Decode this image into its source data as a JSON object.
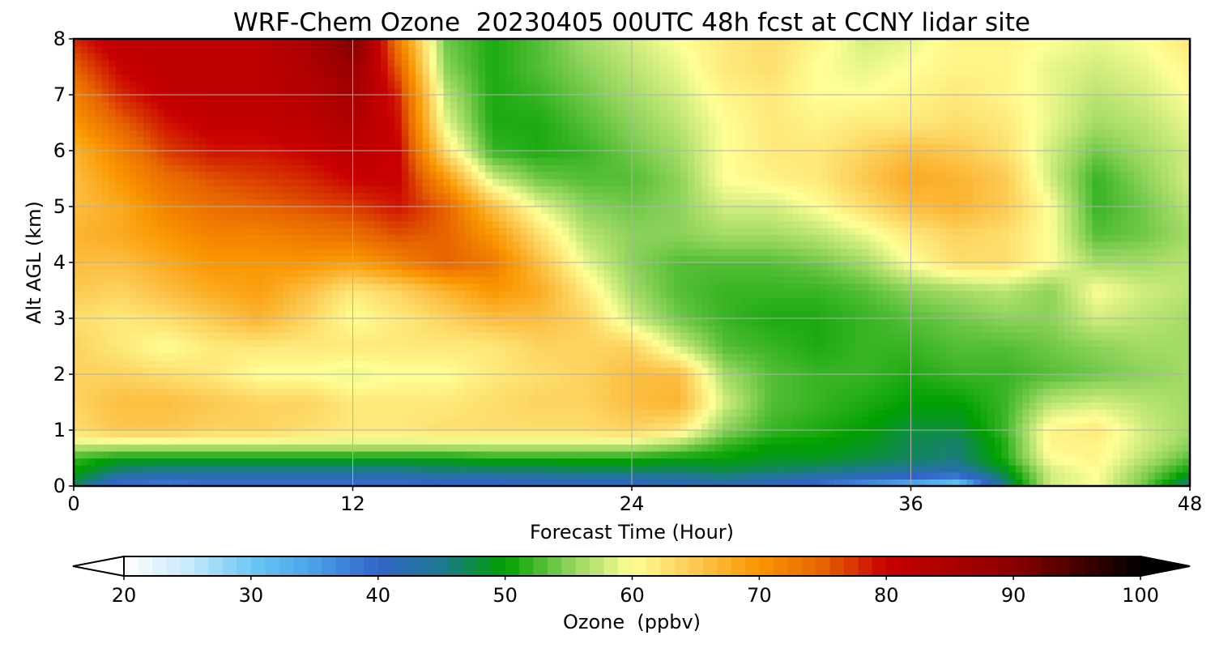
{
  "chart_data": {
    "type": "heatmap",
    "title": "WRF-Chem Ozone  20230405 00UTC 48h fcst at CCNY lidar site",
    "xlabel": "Forecast Time (Hour)",
    "ylabel": "Alt AGL (km)",
    "xlim": [
      0,
      48
    ],
    "ylim": [
      0,
      8
    ],
    "x_ticks": [
      "0",
      "12",
      "24",
      "36",
      "48"
    ],
    "y_ticks": [
      "0",
      "1",
      "2",
      "3",
      "4",
      "5",
      "6",
      "7",
      "8"
    ],
    "grid": true,
    "x": [
      0,
      2,
      4,
      6,
      8,
      10,
      12,
      14,
      16,
      18,
      20,
      22,
      24,
      26,
      28,
      30,
      32,
      34,
      36,
      38,
      40,
      42,
      44,
      46,
      48
    ],
    "y": [
      0,
      0.25,
      0.5,
      0.75,
      1,
      1.5,
      2,
      2.5,
      3,
      3.5,
      4,
      4.5,
      5,
      5.5,
      6,
      6.5,
      7,
      7.5,
      8
    ],
    "z_units": "ppbv",
    "z": [
      [
        47,
        38,
        37,
        38,
        38,
        38,
        38,
        38,
        39,
        39,
        40,
        40,
        40,
        41,
        42,
        40,
        38,
        35,
        32,
        28,
        45,
        58,
        60,
        54,
        45
      ],
      [
        50,
        45,
        44,
        44,
        44,
        44,
        44,
        44,
        45,
        45,
        45,
        46,
        46,
        46,
        47,
        46,
        45,
        44,
        43,
        42,
        48,
        58,
        60,
        55,
        50
      ],
      [
        52,
        50,
        50,
        50,
        50,
        50,
        50,
        50,
        50,
        51,
        51,
        51,
        51,
        50,
        50,
        49,
        49,
        48,
        47,
        46,
        51,
        60,
        61,
        57,
        53
      ],
      [
        58,
        58,
        58,
        58,
        58,
        58,
        58,
        58,
        58,
        58,
        58,
        58,
        58,
        56,
        52,
        50,
        50,
        49,
        47,
        46,
        51,
        61,
        61,
        58,
        55
      ],
      [
        63,
        65,
        65,
        64,
        64,
        63,
        62,
        62,
        63,
        63,
        63,
        63,
        64,
        62,
        55,
        52,
        51,
        50,
        48,
        48,
        52,
        61,
        62,
        58,
        56
      ],
      [
        64,
        66,
        66,
        65,
        64,
        64,
        62,
        62,
        62,
        63,
        64,
        64,
        66,
        67,
        58,
        53,
        52,
        51,
        50,
        50,
        52,
        57,
        58,
        57,
        56
      ],
      [
        64,
        64,
        63,
        62,
        60,
        60,
        59,
        60,
        60,
        62,
        63,
        64,
        66,
        66,
        56,
        53,
        52,
        52,
        51,
        52,
        52,
        53,
        54,
        55,
        56
      ],
      [
        64,
        62,
        60,
        62,
        62,
        62,
        62,
        62,
        62,
        62,
        64,
        64,
        64,
        58,
        53,
        52,
        51,
        52,
        52,
        53,
        53,
        54,
        55,
        56,
        56
      ],
      [
        63,
        62,
        63,
        65,
        67,
        64,
        60,
        62,
        64,
        66,
        66,
        64,
        58,
        54,
        52,
        51,
        51,
        52,
        53,
        54,
        55,
        55,
        58,
        57,
        56
      ],
      [
        65,
        64,
        66,
        68,
        69,
        66,
        62,
        64,
        67,
        70,
        68,
        62,
        56,
        53,
        52,
        52,
        52,
        53,
        55,
        56,
        57,
        55,
        60,
        58,
        57
      ],
      [
        66,
        66,
        68,
        70,
        70,
        70,
        69,
        72,
        75,
        73,
        66,
        59,
        55,
        53,
        53,
        53,
        54,
        56,
        60,
        63,
        63,
        60,
        56,
        56,
        57
      ],
      [
        67,
        68,
        70,
        72,
        72,
        73,
        74,
        76,
        75,
        70,
        63,
        57,
        55,
        55,
        56,
        56,
        57,
        59,
        62,
        64,
        63,
        60,
        53,
        54,
        56
      ],
      [
        66,
        68,
        72,
        74,
        75,
        76,
        77,
        79,
        75,
        66,
        59,
        55,
        54,
        55,
        58,
        58,
        60,
        63,
        66,
        67,
        65,
        60,
        52,
        54,
        57
      ],
      [
        66,
        70,
        74,
        76,
        77,
        78,
        80,
        80,
        70,
        58,
        54,
        53,
        53,
        55,
        60,
        61,
        62,
        65,
        68,
        67,
        65,
        58,
        52,
        55,
        58
      ],
      [
        67,
        72,
        77,
        79,
        79,
        80,
        82,
        80,
        63,
        52,
        51,
        52,
        54,
        56,
        60,
        62,
        62,
        64,
        66,
        65,
        63,
        58,
        54,
        56,
        58
      ],
      [
        70,
        75,
        79,
        81,
        81,
        82,
        84,
        79,
        59,
        51,
        51,
        53,
        55,
        57,
        60,
        62,
        61,
        62,
        62,
        63,
        62,
        59,
        56,
        57,
        59
      ],
      [
        72,
        78,
        81,
        82,
        82,
        83,
        86,
        78,
        57,
        51,
        52,
        54,
        56,
        58,
        61,
        62,
        60,
        60,
        61,
        62,
        61,
        59,
        57,
        58,
        60
      ],
      [
        75,
        80,
        82,
        82,
        82,
        84,
        88,
        75,
        55,
        51,
        53,
        55,
        57,
        59,
        62,
        63,
        60,
        59,
        60,
        61,
        61,
        59,
        58,
        59,
        61
      ],
      [
        78,
        82,
        82,
        82,
        82,
        85,
        92,
        72,
        54,
        51,
        53,
        56,
        58,
        60,
        62,
        63,
        61,
        58,
        59,
        61,
        61,
        60,
        59,
        60,
        62
      ]
    ],
    "colorbar": {
      "label": "Ozone  (ppbv)",
      "min": 20,
      "max": 100,
      "extend": "both",
      "ticks": [
        "20",
        "30",
        "40",
        "50",
        "60",
        "70",
        "80",
        "90",
        "100"
      ],
      "colors": [
        {
          "v": 20,
          "c": "#ffffff"
        },
        {
          "v": 25,
          "c": "#c8eafa"
        },
        {
          "v": 30,
          "c": "#6ec8f5"
        },
        {
          "v": 35,
          "c": "#4aa0e6"
        },
        {
          "v": 40,
          "c": "#3264c8"
        },
        {
          "v": 45,
          "c": "#1e7890"
        },
        {
          "v": 50,
          "c": "#00a000"
        },
        {
          "v": 55,
          "c": "#8cd25a"
        },
        {
          "v": 60,
          "c": "#ffff96"
        },
        {
          "v": 65,
          "c": "#fcc850"
        },
        {
          "v": 70,
          "c": "#fa9600"
        },
        {
          "v": 75,
          "c": "#e66400"
        },
        {
          "v": 80,
          "c": "#c80000"
        },
        {
          "v": 90,
          "c": "#8c0000"
        },
        {
          "v": 100,
          "c": "#000000"
        }
      ]
    }
  }
}
